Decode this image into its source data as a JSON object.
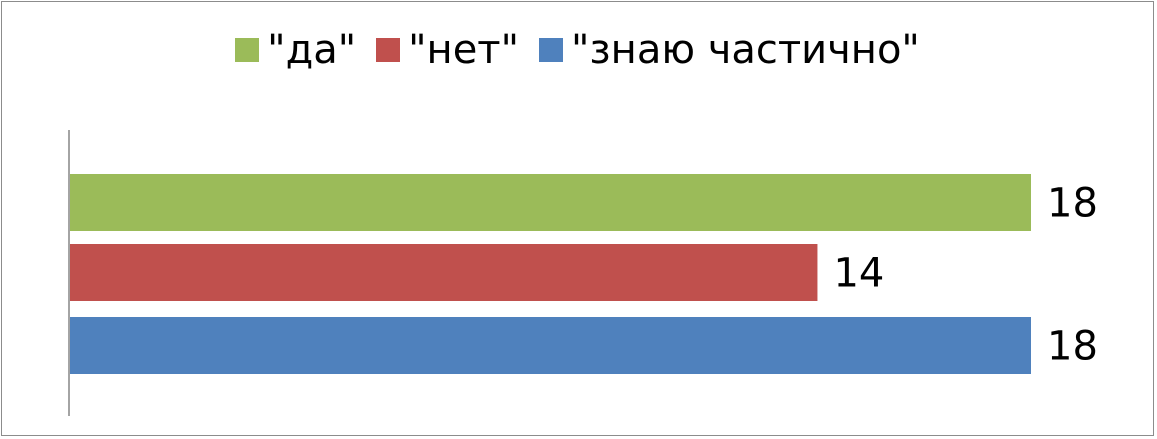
{
  "chart_data": {
    "type": "bar",
    "orientation": "horizontal",
    "title": "",
    "xlabel": "",
    "ylabel": "",
    "xlim": [
      0,
      18
    ],
    "grid": false,
    "legend_placement": "top",
    "series": [
      {
        "name": "\"да\"",
        "values": [
          18
        ],
        "color": "#9BBB59"
      },
      {
        "name": "\"нет\"",
        "values": [
          14
        ],
        "color": "#C0504D"
      },
      {
        "name": "\"знаю частично\"",
        "values": [
          18
        ],
        "color": "#4F81BD"
      }
    ]
  }
}
